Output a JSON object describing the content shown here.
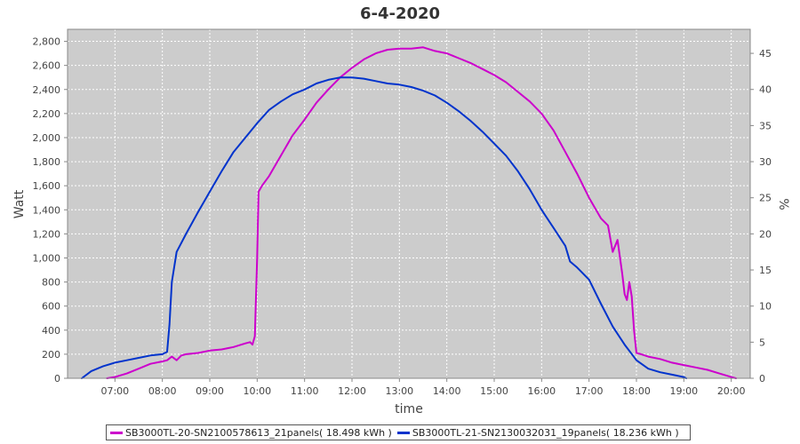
{
  "chart_data": {
    "type": "line",
    "title": "6-4-2020",
    "xlabel": "time",
    "ylabel": "Watt",
    "y2label": "%",
    "xlim": [
      6.0,
      20.4
    ],
    "ylim": [
      0,
      2900
    ],
    "y2lim": [
      0,
      48.33
    ],
    "x_ticks": [
      7,
      8,
      9,
      10,
      11,
      12,
      13,
      14,
      15,
      16,
      17,
      18,
      19,
      20
    ],
    "x_tick_labels": [
      "07:00",
      "08:00",
      "09:00",
      "10:00",
      "11:00",
      "12:00",
      "13:00",
      "14:00",
      "15:00",
      "16:00",
      "17:00",
      "18:00",
      "19:00",
      "20:00"
    ],
    "y_ticks": [
      0,
      200,
      400,
      600,
      800,
      1000,
      1200,
      1400,
      1600,
      1800,
      2000,
      2200,
      2400,
      2600,
      2800
    ],
    "y_tick_labels": [
      "0",
      "200",
      "400",
      "600",
      "800",
      "1,000",
      "1,200",
      "1,400",
      "1,600",
      "1,800",
      "2,000",
      "2,200",
      "2,400",
      "2,600",
      "2,800"
    ],
    "y2_ticks": [
      0,
      5,
      10,
      15,
      20,
      25,
      30,
      35,
      40,
      45
    ],
    "y2_tick_labels": [
      "0",
      "5",
      "10",
      "15",
      "20",
      "25",
      "30",
      "35",
      "40",
      "45"
    ],
    "grid": true,
    "legend_position": "bottom",
    "background": "#cccccc",
    "series": [
      {
        "name": "SB3000TL-20-SN2100578613_21panels( 18.498 kWh )",
        "color": "#cc00cc",
        "x": [
          6.83,
          7.0,
          7.25,
          7.5,
          7.75,
          8.0,
          8.1,
          8.2,
          8.3,
          8.4,
          8.5,
          8.75,
          9.0,
          9.25,
          9.5,
          9.75,
          9.85,
          9.9,
          9.95,
          10.0,
          10.03,
          10.1,
          10.25,
          10.5,
          10.75,
          11.0,
          11.25,
          11.5,
          11.75,
          12.0,
          12.25,
          12.5,
          12.75,
          13.0,
          13.25,
          13.5,
          13.75,
          14.0,
          14.25,
          14.5,
          14.75,
          15.0,
          15.25,
          15.5,
          15.75,
          16.0,
          16.25,
          16.5,
          16.75,
          17.0,
          17.25,
          17.4,
          17.5,
          17.6,
          17.7,
          17.75,
          17.8,
          17.85,
          17.9,
          17.95,
          18.0,
          18.1,
          18.25,
          18.5,
          18.75,
          19.0,
          19.25,
          19.5,
          19.75,
          20.0,
          20.1
        ],
        "values": [
          0,
          10,
          40,
          80,
          120,
          140,
          150,
          180,
          150,
          190,
          200,
          210,
          230,
          240,
          260,
          290,
          300,
          280,
          350,
          1000,
          1550,
          1600,
          1680,
          1850,
          2020,
          2150,
          2290,
          2400,
          2500,
          2580,
          2650,
          2700,
          2730,
          2740,
          2740,
          2750,
          2720,
          2700,
          2660,
          2620,
          2570,
          2520,
          2460,
          2380,
          2300,
          2200,
          2060,
          1880,
          1700,
          1500,
          1330,
          1270,
          1050,
          1150,
          870,
          700,
          650,
          800,
          680,
          400,
          210,
          200,
          180,
          160,
          130,
          110,
          90,
          70,
          40,
          10,
          0
        ]
      },
      {
        "name": "SB3000TL-21-SN2130032031_19panels( 18.236 kWh )",
        "color": "#0033cc",
        "x": [
          6.3,
          6.5,
          6.75,
          7.0,
          7.25,
          7.5,
          7.75,
          8.0,
          8.1,
          8.15,
          8.2,
          8.3,
          8.5,
          8.75,
          9.0,
          9.25,
          9.5,
          9.75,
          10.0,
          10.25,
          10.5,
          10.75,
          11.0,
          11.25,
          11.5,
          11.75,
          12.0,
          12.25,
          12.5,
          12.75,
          13.0,
          13.25,
          13.5,
          13.75,
          14.0,
          14.25,
          14.5,
          14.75,
          15.0,
          15.25,
          15.5,
          15.75,
          16.0,
          16.25,
          16.5,
          16.6,
          16.75,
          17.0,
          17.25,
          17.5,
          17.75,
          18.0,
          18.25,
          18.5,
          18.75,
          19.0,
          19.05
        ],
        "values": [
          0,
          60,
          100,
          130,
          150,
          170,
          190,
          200,
          220,
          450,
          800,
          1050,
          1200,
          1380,
          1550,
          1720,
          1880,
          2000,
          2120,
          2230,
          2300,
          2360,
          2400,
          2450,
          2480,
          2500,
          2500,
          2490,
          2470,
          2450,
          2440,
          2420,
          2390,
          2350,
          2290,
          2220,
          2140,
          2050,
          1950,
          1850,
          1720,
          1570,
          1400,
          1250,
          1100,
          970,
          920,
          820,
          620,
          430,
          280,
          150,
          80,
          50,
          30,
          10,
          0
        ]
      }
    ]
  }
}
